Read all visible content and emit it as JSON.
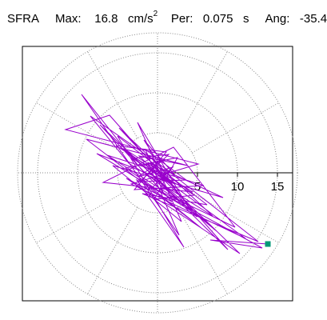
{
  "header": {
    "label": "SFRA",
    "max_label": "Max:",
    "max_value": "16.8",
    "max_unit": "cm/s",
    "max_unit_exp": "2",
    "per_label": "Per:",
    "per_value": "0.075",
    "per_unit": "s",
    "ang_label": "Ang:",
    "ang_value": "-35.4"
  },
  "chart_data": {
    "type": "polar-orbit",
    "r_max": 17.5,
    "radial_ticks": [
      5,
      10,
      15
    ],
    "tick_labels": [
      "5",
      "10",
      "15"
    ],
    "ring_radii": [
      5,
      10,
      15
    ],
    "spoke_angles_deg": [
      0,
      30,
      60,
      90,
      120,
      150,
      180,
      210,
      240,
      270,
      300,
      330
    ],
    "grid": true,
    "trace_color": "#9900cc",
    "marker_color": "#009977",
    "end_point": [
      13.8,
      -8.9
    ],
    "trace": [
      [
        0,
        0
      ],
      [
        1.2,
        -0.8
      ],
      [
        -0.9,
        1.1
      ],
      [
        2.1,
        -1.4
      ],
      [
        -1.8,
        0.9
      ],
      [
        0.6,
        1.6
      ],
      [
        -2.4,
        -0.5
      ],
      [
        1.9,
        0.7
      ],
      [
        -0.7,
        -1.9
      ],
      [
        2.8,
        -2.2
      ],
      [
        -3.1,
        1.8
      ],
      [
        1.4,
        2.3
      ],
      [
        -2.2,
        -1.1
      ],
      [
        3.6,
        -0.9
      ],
      [
        -1.5,
        2.9
      ],
      [
        0.8,
        -2.7
      ],
      [
        -4.0,
        0.6
      ],
      [
        2.5,
        1.9
      ],
      [
        -0.4,
        -3.3
      ],
      [
        4.6,
        -2.8
      ],
      [
        -5.2,
        3.4
      ],
      [
        1.1,
        2.6
      ],
      [
        -2.9,
        -2.1
      ],
      [
        5.8,
        -1.6
      ],
      [
        -6.3,
        2.2
      ],
      [
        3.4,
        -3.9
      ],
      [
        -1.7,
        4.1
      ],
      [
        2.2,
        -0.3
      ],
      [
        -8.4,
        7.1
      ],
      [
        -3.6,
        1.2
      ],
      [
        6.9,
        -5.4
      ],
      [
        -4.8,
        5.6
      ],
      [
        1.6,
        -1.2
      ],
      [
        -7.6,
        2.4
      ],
      [
        4.1,
        -4.7
      ],
      [
        -2.5,
        6.3
      ],
      [
        3.0,
        -6.1
      ],
      [
        -5.6,
        0.9
      ],
      [
        8.2,
        -3.1
      ],
      [
        -1.2,
        1.3
      ],
      [
        2.7,
        -7.8
      ],
      [
        -9.5,
        9.8
      ],
      [
        -2.0,
        0.4
      ],
      [
        7.4,
        -7.3
      ],
      [
        -4.3,
        3.0
      ],
      [
        11.0,
        -8.2
      ],
      [
        -3.3,
        -1.4
      ],
      [
        5.1,
        1.1
      ],
      [
        -11.5,
        5.4
      ],
      [
        -6.0,
        7.2
      ],
      [
        0.9,
        -0.6
      ],
      [
        8.8,
        -9.6
      ],
      [
        -3.7,
        2.7
      ],
      [
        4.4,
        -2.4
      ],
      [
        -6.8,
        -1.2
      ],
      [
        2.0,
        3.2
      ],
      [
        9.7,
        -6.8
      ],
      [
        -2.6,
        -0.9
      ],
      [
        3.3,
        -9.3
      ],
      [
        -5.0,
        4.6
      ],
      [
        6.2,
        -4.0
      ],
      [
        -1.9,
        -2.6
      ],
      [
        12.6,
        -8.6
      ],
      [
        -0.8,
        1.9
      ],
      [
        4.9,
        -5.5
      ],
      [
        -7.2,
        6.0
      ],
      [
        1.8,
        -3.6
      ],
      [
        -3.9,
        -0.7
      ],
      [
        10.3,
        -10.1
      ],
      [
        -2.3,
        2.1
      ],
      [
        3.8,
        0.9
      ],
      [
        -8.9,
        4.2
      ],
      [
        5.6,
        -7.0
      ],
      [
        -1.0,
        -1.7
      ],
      [
        13.1,
        -9.4
      ],
      [
        6.6,
        -8.4
      ],
      [
        13.8,
        -8.9
      ]
    ]
  }
}
